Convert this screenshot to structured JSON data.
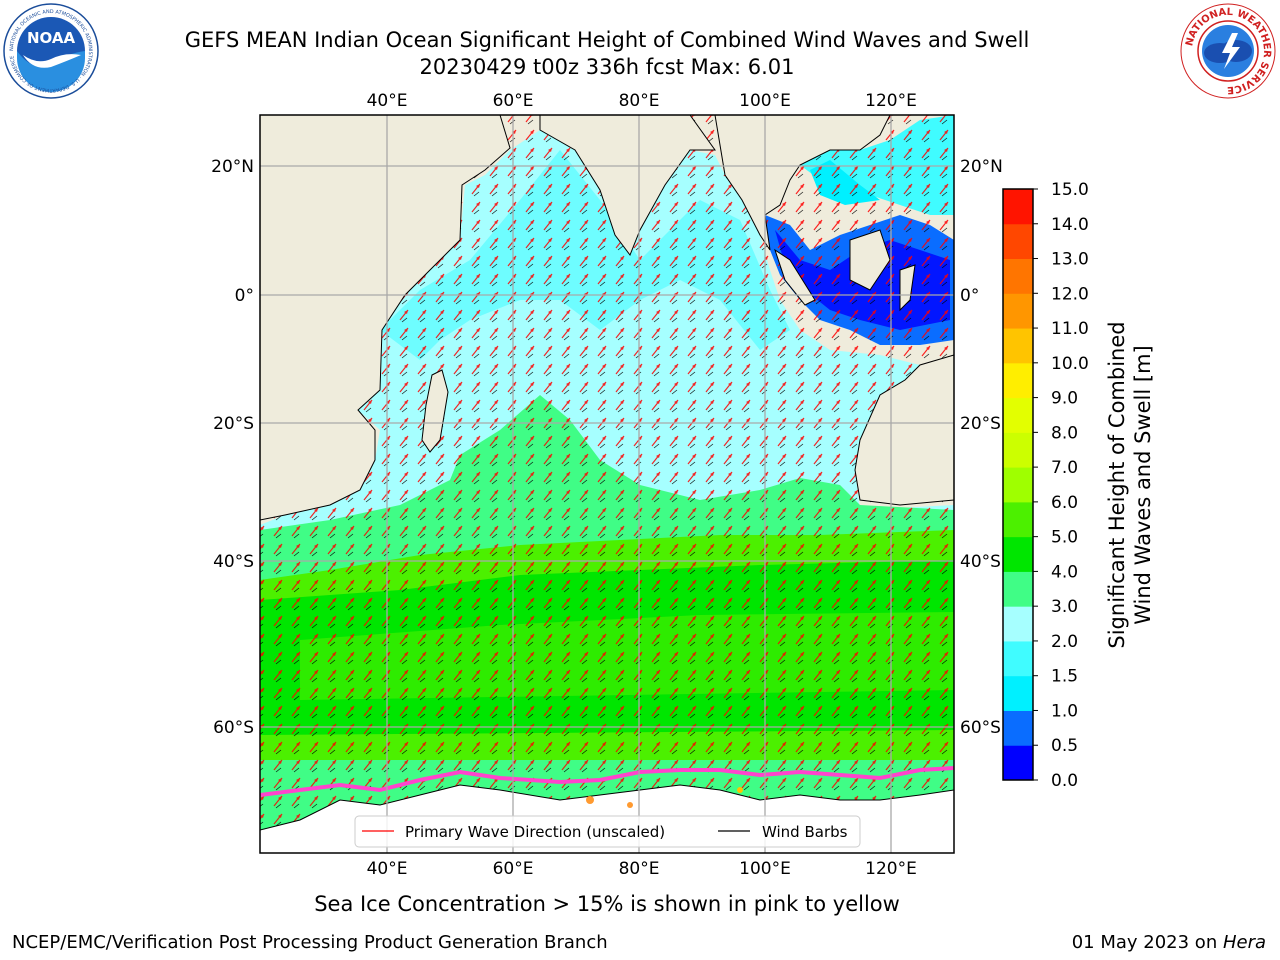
{
  "header": {
    "title_line1": "GEFS MEAN Indian Ocean Significant Height of Combined Wind Waves and Swell",
    "title_line2": "20230429 t00z 336h fcst   Max: 6.01"
  },
  "logos": {
    "left": {
      "icon": "noaa-logo",
      "text": "NOAA",
      "ring_text": "NATIONAL OCEANIC AND ATMOSPHERIC ADMINISTRATION · U.S. DEPARTMENT OF COMMERCE"
    },
    "right": {
      "icon": "nws-logo",
      "ring_text": "NATIONAL WEATHER SERVICE"
    }
  },
  "map": {
    "lon_ticks": [
      "40°E",
      "60°E",
      "80°E",
      "100°E",
      "120°E"
    ],
    "lat_ticks": [
      "20°N",
      "0°",
      "20°S",
      "40°S",
      "60°S"
    ],
    "legend": {
      "wave_direction": "Primary Wave Direction (unscaled)",
      "wind_barbs": "Wind Barbs"
    },
    "land_color": "#efecdc",
    "sea_ice_color": "#ff44cc"
  },
  "colorbar": {
    "title_line1": "Significant Height of Combined",
    "title_line2": "Wind Waves and Swell [m]",
    "ticks": [
      "0.0",
      "0.5",
      "1.0",
      "1.5",
      "2.0",
      "3.0",
      "4.0",
      "5.0",
      "6.0",
      "7.0",
      "8.0",
      "9.0",
      "10.0",
      "11.0",
      "12.0",
      "13.0",
      "14.0",
      "15.0"
    ],
    "colors": [
      "#0000ff",
      "#0a6dff",
      "#00f0ff",
      "#40fcff",
      "#a6ffff",
      "#40fd86",
      "#00e600",
      "#4cf000",
      "#9fff00",
      "#ccff00",
      "#e3ff00",
      "#ffee00",
      "#ffc400",
      "#ff9600",
      "#ff7500",
      "#ff4700",
      "#ff1400"
    ]
  },
  "caption": "Sea Ice Concentration > 15% is shown in pink to yellow",
  "footer": {
    "left": "NCEP/EMC/Verification Post Processing Product Generation Branch",
    "date": "01 May 2023 on ",
    "machine": "Hera"
  }
}
